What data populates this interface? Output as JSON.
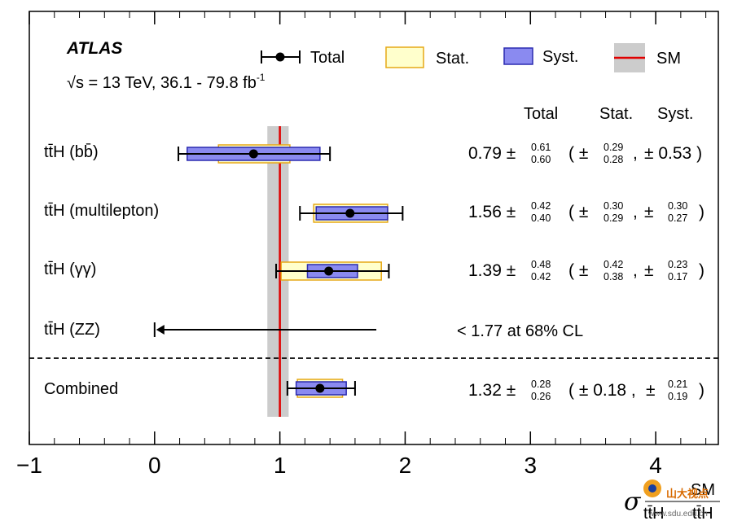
{
  "header": {
    "experiment": "ATLAS",
    "energy_label": "√s = 13 TeV, 36.1 - 79.8 fb",
    "energy_sup": "-1"
  },
  "legend": {
    "total": "Total",
    "stat": "Stat.",
    "syst": "Syst.",
    "sm": "SM"
  },
  "columns": {
    "total": "Total",
    "stat": "Stat.",
    "syst": "Syst."
  },
  "colors": {
    "stat_fill": "#ffffcc",
    "stat_stroke": "#e6a817",
    "syst_fill": "#8a8af0",
    "syst_stroke": "#2b2bb0",
    "sm_band": "#cccccc",
    "sm_line": "#e00000"
  },
  "chart_data": {
    "type": "forest",
    "xlabel": "σ_ttH/σ_ttH^SM",
    "xlim": [
      -1,
      4.5
    ],
    "x_ticks": [
      -1,
      0,
      1,
      2,
      3,
      4
    ],
    "x_tick_labels": [
      "−1",
      "0",
      "1",
      "2",
      "3",
      "4"
    ],
    "sm_value": 1.0,
    "sm_band": [
      0.9,
      1.07
    ],
    "rows": [
      {
        "label": "tt̄H (bb̄)",
        "central": 0.79,
        "total": [
          0.6,
          0.61
        ],
        "stat": [
          0.28,
          0.29
        ],
        "syst": [
          0.53,
          0.53
        ],
        "text_central": "0.79 ±",
        "text_total_up": "0.61",
        "text_total_dn": "0.60",
        "text_stat_up": "0.29",
        "text_stat_dn": "0.28",
        "text_syst": "± 0.53 )"
      },
      {
        "label": "tt̄H (multilepton)",
        "central": 1.56,
        "total": [
          0.4,
          0.42
        ],
        "stat": [
          0.29,
          0.3
        ],
        "syst": [
          0.27,
          0.3
        ],
        "text_central": "1.56 ±",
        "text_total_up": "0.42",
        "text_total_dn": "0.40",
        "text_stat_up": "0.30",
        "text_stat_dn": "0.29",
        "text_syst_up": "0.30",
        "text_syst_dn": "0.27"
      },
      {
        "label": "tt̄H (γγ)",
        "central": 1.39,
        "total": [
          0.42,
          0.48
        ],
        "stat": [
          0.38,
          0.42
        ],
        "syst": [
          0.17,
          0.23
        ],
        "text_central": "1.39 ±",
        "text_total_up": "0.48",
        "text_total_dn": "0.42",
        "text_stat_up": "0.42",
        "text_stat_dn": "0.38",
        "text_syst_up": "0.23",
        "text_syst_dn": "0.17"
      },
      {
        "label": "tt̄H (ZZ)",
        "upper_limit": 1.77,
        "text_limit": "< 1.77 at 68% CL"
      },
      {
        "label": "Combined",
        "central": 1.32,
        "total": [
          0.26,
          0.28
        ],
        "stat": [
          0.18,
          0.18
        ],
        "syst": [
          0.19,
          0.21
        ],
        "text_central": "1.32 ±",
        "text_total_up": "0.28",
        "text_total_dn": "0.26",
        "text_stat": "± 0.18 ,",
        "text_syst_up": "0.21",
        "text_syst_dn": "0.19"
      }
    ]
  },
  "watermark": {
    "text": "山大视点",
    "url_text": "www.sdu.edu.cn"
  }
}
